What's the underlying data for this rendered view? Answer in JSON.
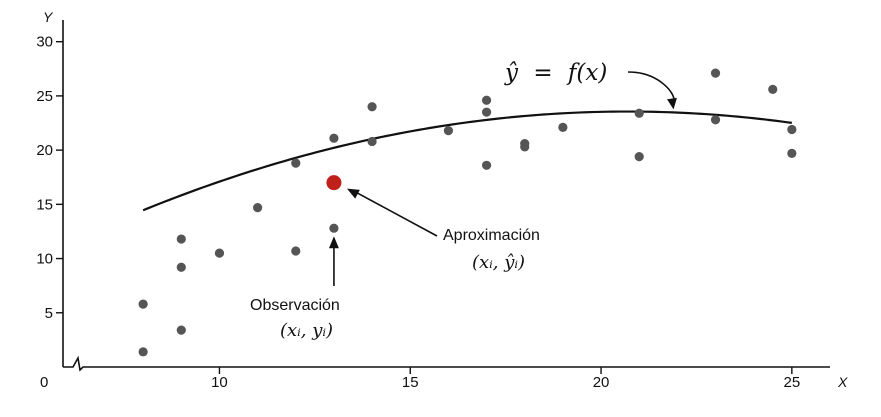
{
  "chart_data": {
    "type": "scatter",
    "title": "",
    "xlabel": "X",
    "ylabel": "Y",
    "origin_label": "0",
    "xlim": [
      5.9,
      26
    ],
    "ylim": [
      0,
      32
    ],
    "x_ticks": [
      10,
      15,
      20,
      25
    ],
    "y_ticks": [
      5,
      10,
      15,
      20,
      25,
      30
    ],
    "grid": false,
    "axis_break": true,
    "points": [
      {
        "x": 8,
        "y": 5.8
      },
      {
        "x": 8,
        "y": 1.4
      },
      {
        "x": 9,
        "y": 11.8
      },
      {
        "x": 9,
        "y": 9.2
      },
      {
        "x": 9,
        "y": 3.4
      },
      {
        "x": 10,
        "y": 10.5
      },
      {
        "x": 11,
        "y": 14.7
      },
      {
        "x": 12,
        "y": 18.8
      },
      {
        "x": 12,
        "y": 10.7
      },
      {
        "x": 13,
        "y": 21.1
      },
      {
        "x": 13,
        "y": 12.8
      },
      {
        "x": 14,
        "y": 24.0
      },
      {
        "x": 14,
        "y": 20.8
      },
      {
        "x": 16,
        "y": 21.8
      },
      {
        "x": 17,
        "y": 24.6
      },
      {
        "x": 17,
        "y": 23.5
      },
      {
        "x": 17,
        "y": 18.6
      },
      {
        "x": 18,
        "y": 20.6
      },
      {
        "x": 18,
        "y": 20.3
      },
      {
        "x": 19,
        "y": 22.1
      },
      {
        "x": 21,
        "y": 23.4
      },
      {
        "x": 21,
        "y": 19.4
      },
      {
        "x": 23,
        "y": 27.1
      },
      {
        "x": 23,
        "y": 22.8
      },
      {
        "x": 24.5,
        "y": 25.6
      },
      {
        "x": 25,
        "y": 21.9
      },
      {
        "x": 25,
        "y": 19.7
      }
    ],
    "highlight_point": {
      "x": 13,
      "y": 17.0,
      "color": "#c0201a"
    },
    "fit_curve": {
      "label_lhs": "ŷ",
      "label_eq": "=",
      "label_rhs": "f(x)",
      "coef": {
        "a": -0.0565,
        "b": 2.3385,
        "c": -0.6385
      },
      "x_start": 8,
      "x_end": 25,
      "color": "#111111"
    },
    "point_color": "#555555",
    "annotations": {
      "approximation": {
        "text": "Aproximación",
        "math": "(xᵢ, ŷᵢ)"
      },
      "observation": {
        "text": "Observación",
        "math": "(xᵢ, yᵢ)"
      }
    }
  }
}
